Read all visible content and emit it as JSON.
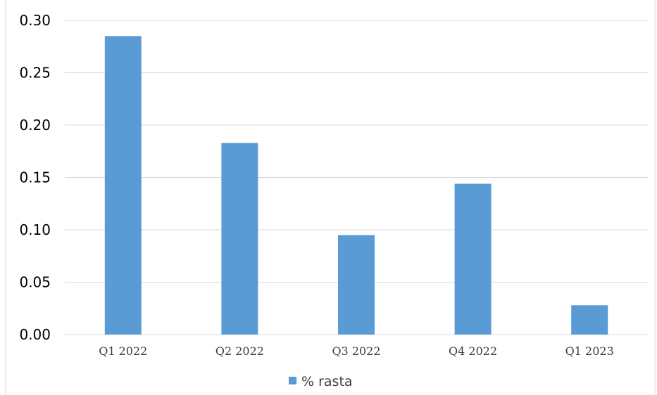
{
  "chart_data": {
    "type": "bar",
    "categories": [
      "Q1 2022",
      "Q2 2022",
      "Q3 2022",
      "Q4 2022",
      "Q1 2023"
    ],
    "series": [
      {
        "name": "% rasta",
        "values": [
          0.285,
          0.183,
          0.095,
          0.144,
          0.028
        ],
        "color": "#5B9BD5"
      }
    ],
    "yticks": [
      "0.00",
      "0.05",
      "0.10",
      "0.15",
      "0.20",
      "0.25",
      "0.30"
    ],
    "ylim": [
      0,
      0.3
    ],
    "grid": true,
    "legend": "bottom",
    "gridline_color": "#d9d9d9",
    "frame_color": "#d9d9d9"
  }
}
